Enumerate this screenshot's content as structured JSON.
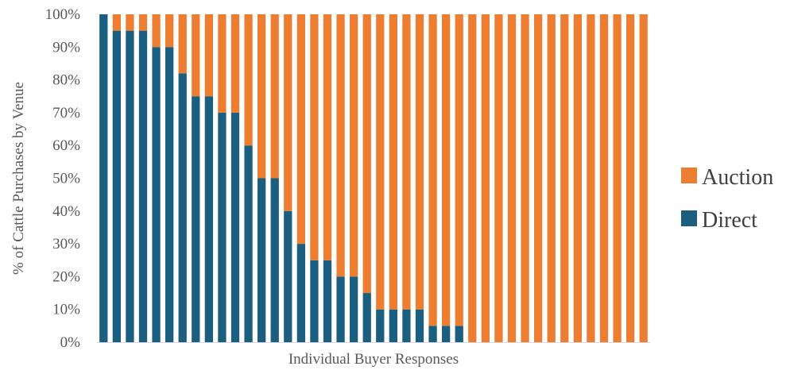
{
  "chart_data": {
    "type": "bar",
    "stacked": true,
    "title": "",
    "xlabel": "Individual Buyer Responses",
    "ylabel": "% of Cattle Purchases by Venue",
    "ylim": [
      0,
      100
    ],
    "yticks": [
      "0%",
      "10%",
      "20%",
      "30%",
      "40%",
      "50%",
      "60%",
      "70%",
      "80%",
      "90%",
      "100%"
    ],
    "grid": false,
    "legend_position": "right",
    "series": [
      {
        "name": "Direct",
        "color": "#1a5f7f",
        "values": [
          100,
          95,
          95,
          95,
          90,
          90,
          82,
          75,
          75,
          70,
          70,
          60,
          50,
          50,
          40,
          30,
          25,
          25,
          20,
          20,
          15,
          10,
          10,
          10,
          10,
          5,
          5,
          5,
          0,
          0,
          0,
          0,
          0,
          0,
          0,
          0,
          0,
          0,
          0,
          0,
          0,
          0
        ]
      },
      {
        "name": "Auction",
        "color": "#ed7d31",
        "values": [
          0,
          5,
          5,
          5,
          10,
          10,
          18,
          25,
          25,
          30,
          30,
          40,
          50,
          50,
          60,
          70,
          75,
          75,
          80,
          80,
          85,
          90,
          90,
          90,
          90,
          95,
          95,
          95,
          100,
          100,
          100,
          100,
          100,
          100,
          100,
          100,
          100,
          100,
          100,
          100,
          100,
          100
        ]
      }
    ],
    "legend": [
      {
        "name": "Auction",
        "color": "#ed7d31"
      },
      {
        "name": "Direct",
        "color": "#1a5f7f"
      }
    ]
  }
}
